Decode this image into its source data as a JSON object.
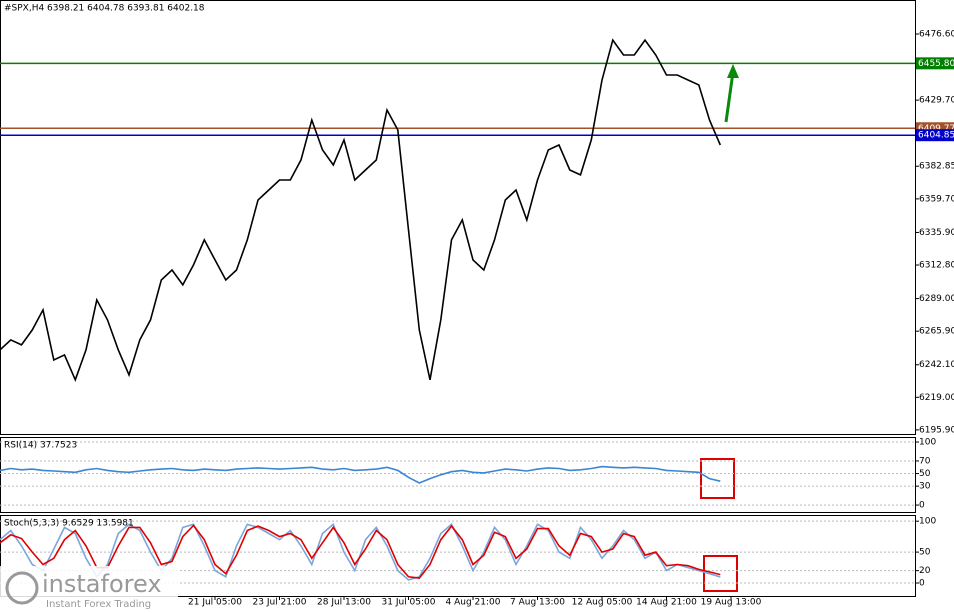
{
  "chart_data": [
    {
      "type": "line",
      "title": "#SPX,H4  6398.21 6404.78 6393.81 6402.18",
      "categories": [
        null,
        null,
        null,
        null,
        null,
        null,
        null,
        null,
        null,
        null,
        null,
        null,
        null,
        null,
        null,
        null,
        null,
        null,
        null,
        null,
        "21 Jul 05:00",
        null,
        null,
        null,
        null,
        null,
        "23 Jul 21:00",
        null,
        null,
        null,
        null,
        null,
        "28 Jul 13:00",
        null,
        null,
        null,
        null,
        null,
        "31 Jul 05:00",
        null,
        null,
        null,
        null,
        null,
        "4 Aug 21:00",
        null,
        null,
        null,
        null,
        null,
        "7 Aug 13:00",
        null,
        null,
        null,
        null,
        null,
        "12 Aug 05:00",
        null,
        null,
        null,
        null,
        null,
        "14 Aug 21:00",
        null,
        null,
        null,
        null,
        null,
        "19 Aug 13:00"
      ],
      "color": "#000000",
      "values": [
        6252.6,
        6259.7,
        6256.2,
        6266.8,
        6281.0,
        6245.5,
        6249.1,
        6231.4,
        6252.6,
        6288.1,
        6273.9,
        6252.6,
        6234.9,
        6259.7,
        6273.9,
        6302.2,
        6309.3,
        6298.7,
        6312.9,
        6330.6,
        6316.4,
        6302.2,
        6309.3,
        6330.6,
        6358.9,
        6366.0,
        6373.1,
        6373.1,
        6387.3,
        6415.6,
        6394.4,
        6383.7,
        6401.5,
        6373.1,
        6380.2,
        6387.3,
        6422.7,
        6408.6,
        6337.7,
        6266.8,
        6231.4,
        6273.9,
        6330.6,
        6344.8,
        6316.4,
        6309.3,
        6330.6,
        6358.9,
        6366.0,
        6344.8,
        6373.1,
        6394.4,
        6397.9,
        6380.2,
        6376.7,
        6401.5,
        6444.0,
        6472.3,
        6461.7,
        6461.7,
        6472.3,
        6461.7,
        6447.5,
        6447.5,
        6444.0,
        6440.5,
        6415.6,
        6397.9,
        null
      ],
      "ylim": [
        6193,
        6500.7
      ],
      "yticks": [
        {
          "value": 6476.6,
          "label": "6476.60"
        },
        {
          "value": 6429.7,
          "label": "6429.70"
        },
        {
          "value": 6382.85,
          "label": "6382.85"
        },
        {
          "value": 6359.7,
          "label": "6359.70"
        },
        {
          "value": 6335.9,
          "label": "6335.90"
        },
        {
          "value": 6312.8,
          "label": "6312.80"
        },
        {
          "value": 6289,
          "label": "6289.00"
        },
        {
          "value": 6265.9,
          "label": "6265.90"
        },
        {
          "value": 6242.1,
          "label": "6242.10"
        },
        {
          "value": 6219,
          "label": "6219.00"
        },
        {
          "value": 6195.9,
          "label": "6195.90"
        }
      ],
      "levels": [
        {
          "value": 6455.8,
          "label": "6455.80",
          "color": "#008000"
        },
        {
          "value": 6409.77,
          "label": "6409.77",
          "color": "#a0522d"
        },
        {
          "value": 6404.85,
          "label": "6404.85",
          "color": "#0000cd"
        }
      ]
    },
    {
      "type": "line",
      "title": "RSI(14) 37.7523",
      "color": "#3a86d4",
      "values": [
        55,
        58,
        56,
        57,
        55,
        54,
        53,
        52,
        56,
        58,
        55,
        53,
        52,
        54,
        56,
        57,
        58,
        56,
        55,
        57,
        56,
        55,
        57,
        58,
        59,
        58,
        57,
        58,
        59,
        60,
        57,
        56,
        58,
        55,
        56,
        57,
        60,
        55,
        44,
        35,
        42,
        48,
        53,
        55,
        52,
        51,
        54,
        57,
        56,
        54,
        57,
        59,
        58,
        55,
        56,
        58,
        61,
        60,
        59,
        60,
        59,
        58,
        55,
        54,
        53,
        52,
        42,
        37.8,
        null
      ],
      "ylim": [
        -11,
        108
      ],
      "yticks": [
        100,
        70,
        50,
        30,
        0
      ]
    },
    {
      "type": "line",
      "title": "Stoch(5,3,3) 9.6529 13.5981",
      "series": [
        {
          "color": "#7aa6dc",
          "values": [
            70,
            85,
            60,
            30,
            20,
            55,
            90,
            80,
            40,
            10,
            30,
            80,
            95,
            85,
            50,
            20,
            40,
            90,
            95,
            60,
            20,
            10,
            60,
            95,
            90,
            80,
            70,
            85,
            60,
            30,
            80,
            95,
            50,
            20,
            70,
            90,
            60,
            20,
            5,
            10,
            40,
            80,
            95,
            60,
            20,
            50,
            90,
            70,
            30,
            60,
            95,
            85,
            50,
            40,
            90,
            70,
            40,
            60,
            85,
            70,
            40,
            50,
            20,
            30,
            25,
            20,
            15,
            9.7,
            null
          ]
        },
        {
          "color": "#e00000",
          "values": [
            65,
            78,
            72,
            50,
            30,
            40,
            70,
            85,
            60,
            25,
            25,
            60,
            90,
            90,
            65,
            30,
            35,
            75,
            93,
            70,
            30,
            15,
            45,
            85,
            92,
            85,
            75,
            80,
            70,
            40,
            65,
            90,
            65,
            30,
            55,
            85,
            70,
            30,
            10,
            8,
            30,
            70,
            92,
            70,
            30,
            45,
            82,
            75,
            40,
            55,
            88,
            88,
            60,
            45,
            80,
            75,
            50,
            55,
            80,
            75,
            45,
            50,
            28,
            30,
            28,
            22,
            18,
            13.6,
            null
          ]
        }
      ],
      "ylim": [
        -21,
        110
      ],
      "yticks": [
        100,
        50,
        20,
        0
      ]
    }
  ],
  "watermark": {
    "brand": "instaforex",
    "tagline": "Instant Forex Trading"
  }
}
